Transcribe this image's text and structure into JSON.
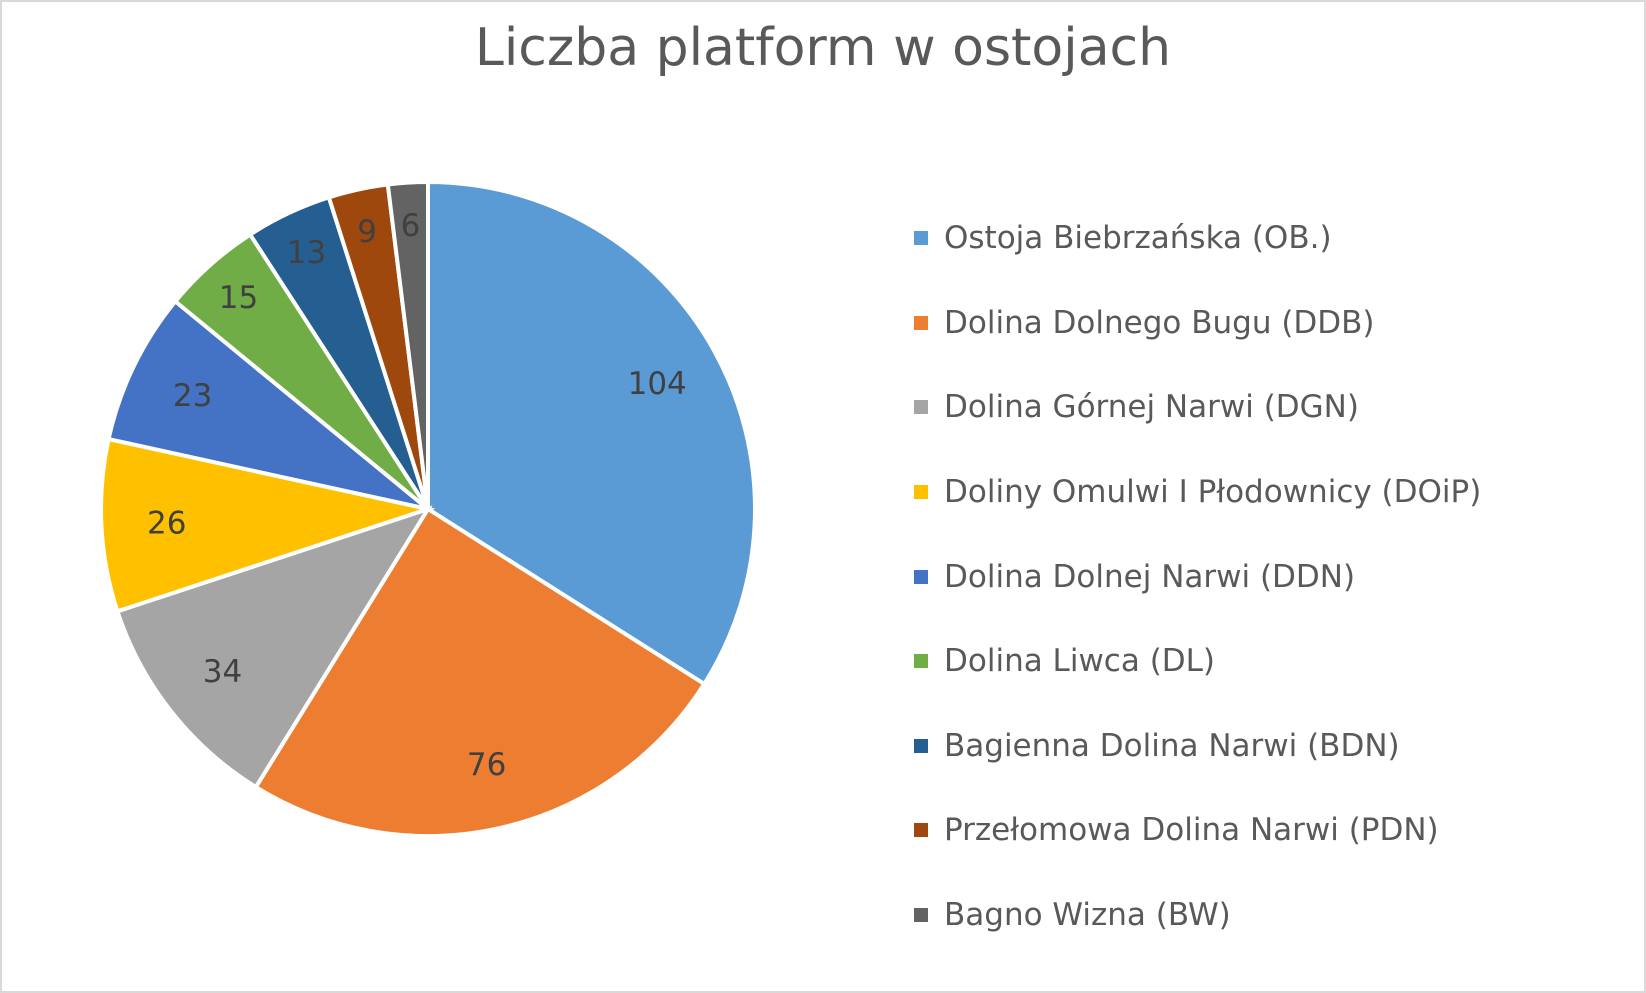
{
  "chart_data": {
    "type": "pie",
    "title": "Liczba platform w ostojach",
    "categories": [
      "Ostoja Biebrzańska (OB.)",
      "Dolina Dolnego Bugu (DDB)",
      "Dolina Górnej Narwi (DGN)",
      "Doliny Omulwi I Płodownicy (DOiP)",
      "Dolina Dolnej Narwi (DDN)",
      "Dolina Liwca (DL)",
      "Bagienna Dolina Narwi (BDN)",
      "Przełomowa Dolina Narwi (PDN)",
      "Bagno Wizna (BW)"
    ],
    "values": [
      104,
      76,
      34,
      26,
      23,
      15,
      13,
      9,
      6
    ],
    "colors": [
      "#5b9bd5",
      "#ed7d31",
      "#a5a5a5",
      "#ffc000",
      "#4472c4",
      "#70ad47",
      "#255e91",
      "#9e480e",
      "#636363"
    ],
    "data_labels": true,
    "legend_position": "right"
  }
}
